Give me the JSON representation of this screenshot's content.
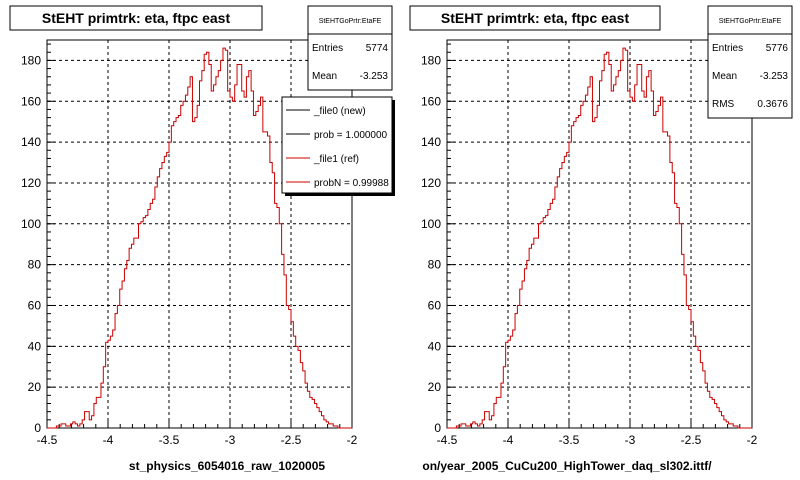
{
  "footer_note": "",
  "legend": {
    "entries": [
      {
        "label": "_file0 (new)",
        "color": "#000000"
      },
      {
        "label": "prob = 1.000000",
        "color": "#000000"
      },
      {
        "label": "_file1 (ref)",
        "color": "#cc0000"
      },
      {
        "label": "probN = 0.99988",
        "color": "#cc0000"
      }
    ]
  },
  "chart_data": [
    {
      "type": "histogram",
      "title": "StEHT primtrk: eta, ftpc east",
      "xlabel": "st_physics_6054016_raw_1020005",
      "xlim": [
        -4.5,
        -2
      ],
      "ylim": [
        0,
        190
      ],
      "x_ticks": [
        "-4.5",
        "-4",
        "-3.5",
        "-3",
        "-2.5",
        "-2"
      ],
      "y_ticks": [
        "0",
        "20",
        "40",
        "60",
        "80",
        "100",
        "120",
        "140",
        "160",
        "180"
      ],
      "grid": true,
      "stats": {
        "header": "StEHTGoPrtr:EtaFE",
        "rows": [
          {
            "label": "Entries",
            "value": "5774"
          },
          {
            "label": "Mean",
            "value": "-3.253"
          }
        ]
      },
      "bin_edges": [
        -4.5,
        -2.0
      ],
      "series": [
        {
          "color": "#cc0000",
          "values": [
            0,
            0,
            0,
            0,
            1,
            1,
            2,
            2,
            1,
            1,
            2,
            3,
            2,
            1,
            2,
            4,
            8,
            8,
            4,
            6,
            12,
            15,
            15,
            22,
            30,
            42,
            43,
            45,
            48,
            56,
            60,
            68,
            72,
            78,
            82,
            88,
            90,
            93,
            93,
            100,
            101,
            103,
            104,
            107,
            110,
            112,
            118,
            123,
            127,
            130,
            133,
            135,
            140,
            148,
            150,
            152,
            153,
            158,
            160,
            163,
            167,
            172,
            150,
            152,
            158,
            170,
            175,
            183,
            184,
            178,
            165,
            168,
            172,
            175,
            180,
            186,
            185,
            165,
            162,
            160,
            168,
            178,
            178,
            165,
            162,
            172,
            175,
            165,
            153,
            155,
            158,
            162,
            145,
            145,
            143,
            130,
            125,
            110,
            108,
            100,
            85,
            75,
            60,
            58,
            52,
            45,
            40,
            38,
            32,
            28,
            22,
            18,
            15,
            14,
            12,
            10,
            8,
            6,
            4,
            3,
            2,
            2,
            1,
            1,
            0,
            0,
            0,
            0,
            0,
            0
          ]
        }
      ]
    },
    {
      "type": "histogram",
      "title": "StEHT primtrk: eta, ftpc east",
      "xlabel": "on/year_2005_CuCu200_HighTower_daq_sl302.ittf/",
      "xlim": [
        -4.5,
        -2
      ],
      "ylim": [
        0,
        190
      ],
      "x_ticks": [
        "-4.5",
        "-4",
        "-3.5",
        "-3",
        "-2.5",
        "-2"
      ],
      "y_ticks": [
        "0",
        "20",
        "40",
        "60",
        "80",
        "100",
        "120",
        "140",
        "160",
        "180"
      ],
      "grid": true,
      "stats": {
        "header": "StEHTGoPrtr:EtaFE",
        "rows": [
          {
            "label": "Entries",
            "value": "5776"
          },
          {
            "label": "Mean",
            "value": "-3.253"
          },
          {
            "label": "RMS",
            "value": "0.3676"
          }
        ]
      },
      "bin_edges": [
        -4.5,
        -2.0
      ],
      "series": [
        {
          "color": "#cc0000",
          "values": [
            0,
            0,
            0,
            0,
            1,
            1,
            2,
            2,
            1,
            1,
            2,
            3,
            2,
            1,
            2,
            4,
            8,
            8,
            4,
            6,
            12,
            15,
            15,
            22,
            30,
            42,
            43,
            45,
            48,
            56,
            60,
            68,
            72,
            78,
            82,
            88,
            90,
            93,
            93,
            100,
            101,
            103,
            104,
            107,
            110,
            112,
            118,
            123,
            127,
            130,
            133,
            135,
            140,
            148,
            150,
            152,
            153,
            158,
            160,
            163,
            167,
            172,
            150,
            152,
            158,
            170,
            175,
            183,
            184,
            178,
            165,
            168,
            172,
            175,
            180,
            186,
            185,
            165,
            162,
            160,
            168,
            178,
            178,
            165,
            162,
            172,
            175,
            165,
            153,
            155,
            158,
            162,
            145,
            145,
            143,
            130,
            125,
            110,
            108,
            100,
            85,
            75,
            60,
            58,
            52,
            45,
            40,
            38,
            32,
            28,
            22,
            18,
            15,
            14,
            12,
            10,
            8,
            6,
            4,
            3,
            2,
            2,
            1,
            1,
            0,
            0,
            0,
            0,
            0,
            0
          ]
        }
      ]
    }
  ]
}
